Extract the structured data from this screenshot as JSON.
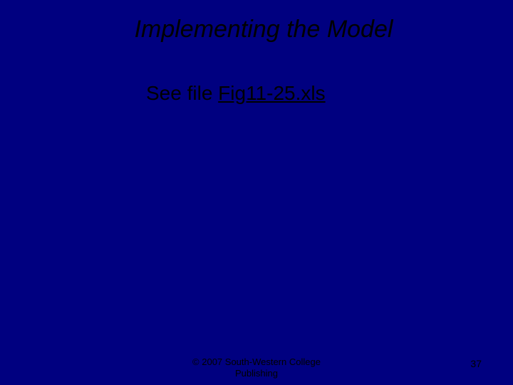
{
  "slide": {
    "title": "Implementing the Model",
    "body_prefix": "See file ",
    "body_link": "Fig11-25.xls",
    "copyright_line1": "© 2007 South-Western College",
    "copyright_line2": "Publishing",
    "page_number": "37"
  }
}
